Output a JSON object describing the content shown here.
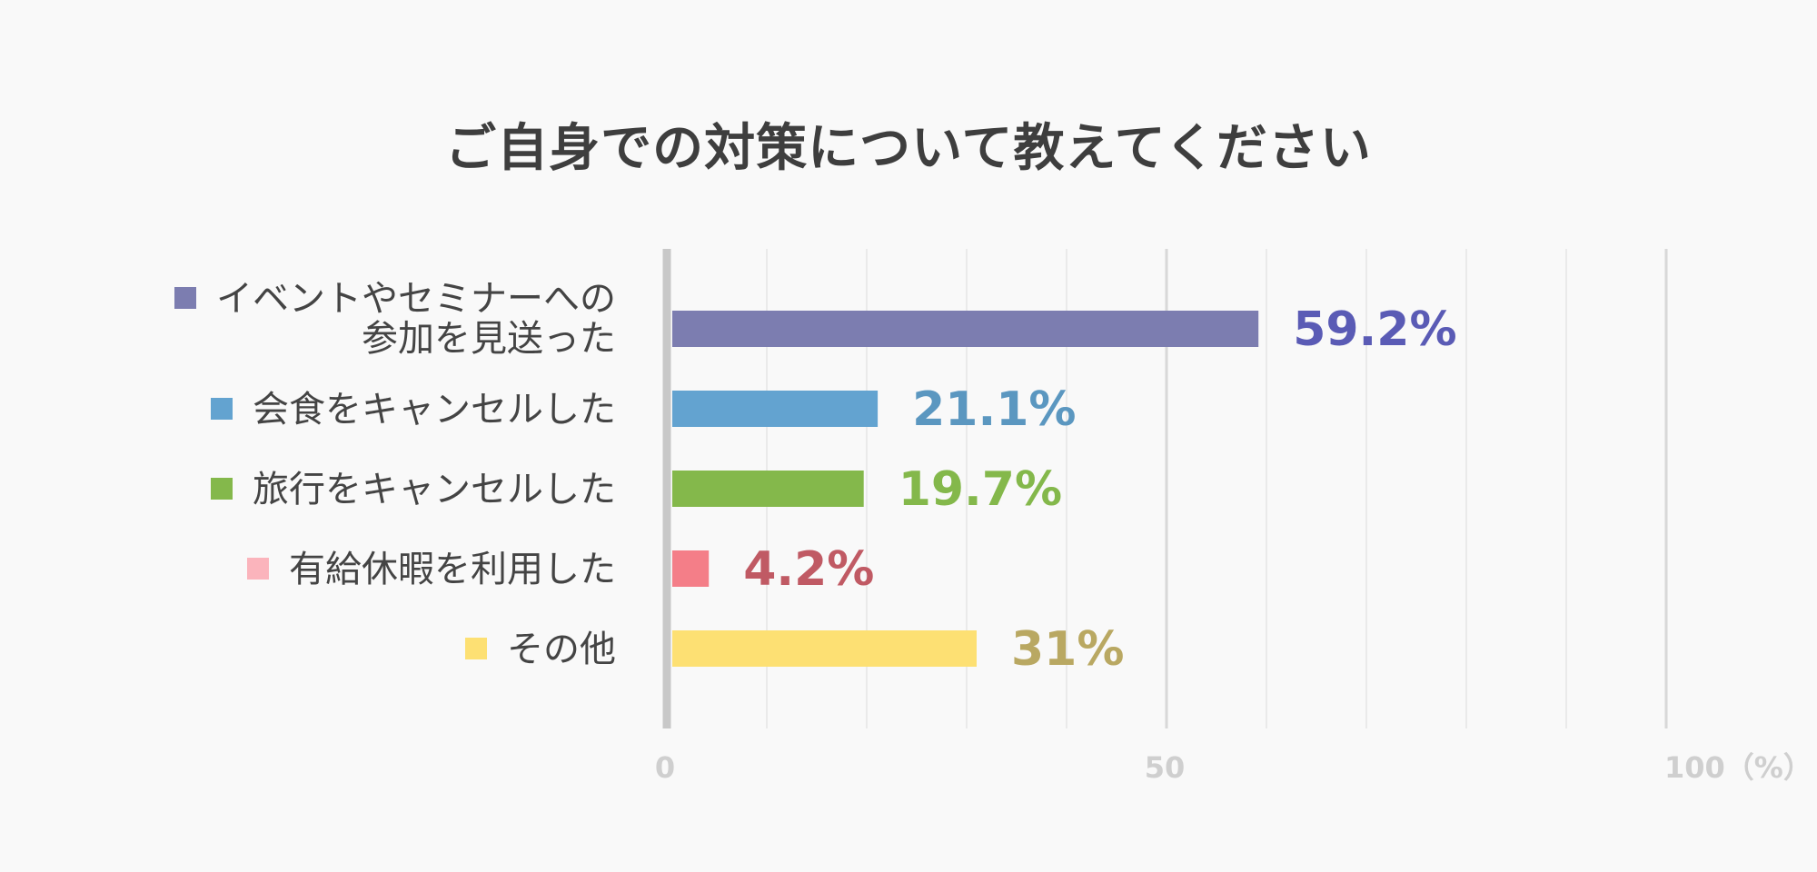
{
  "chart_data": {
    "type": "bar",
    "orientation": "horizontal",
    "title": "ご自身での対策について教えてください",
    "categories": [
      [
        "イベントやセミナーへの",
        "参加を見送った"
      ],
      [
        "会食をキャンセルした"
      ],
      [
        "旅行をキャンセルした"
      ],
      [
        "有給休暇を利用した"
      ],
      [
        "その他"
      ]
    ],
    "values": [
      59.2,
      21.1,
      19.7,
      4.2,
      31
    ],
    "value_labels": [
      "59.2%",
      "21.1%",
      "19.7%",
      "4.2%",
      "31%"
    ],
    "bar_colors": [
      "#7c7db0",
      "#63a3d0",
      "#84b84b",
      "#f47e88",
      "#fde073"
    ],
    "legend_colors": [
      "#7c7db0",
      "#63a3d0",
      "#84b84b",
      "#fbb4bc",
      "#fde073"
    ],
    "label_colors": [
      "#5a5bb5",
      "#5b97c0",
      "#84b84b",
      "#c05a64",
      "#b9a862"
    ],
    "x_ticks": [
      "0",
      "50",
      "100（%）"
    ],
    "xlim": [
      0,
      100
    ],
    "grid": true
  }
}
